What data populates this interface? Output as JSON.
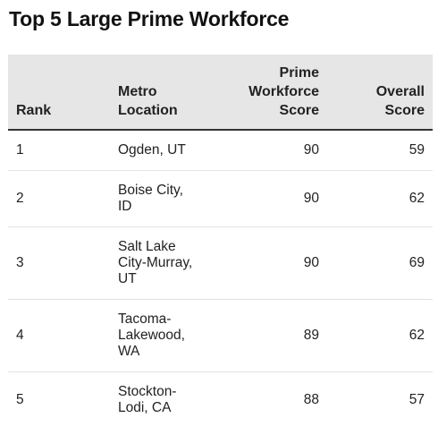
{
  "title": "Top 5 Large Prime Workforce",
  "columns": {
    "rank": "Rank",
    "metro_line1": "Metro",
    "metro_line2": "Location",
    "prime_line1": "Prime",
    "prime_line2": "Workforce",
    "prime_line3": "Score",
    "overall_line1": "Overall",
    "overall_line2": "Score"
  },
  "rows": [
    {
      "rank": "1",
      "location_lines": [
        "Ogden, UT"
      ],
      "prime_score": "90",
      "overall_score": "59"
    },
    {
      "rank": "2",
      "location_lines": [
        "Boise City,",
        "ID"
      ],
      "prime_score": "90",
      "overall_score": "62"
    },
    {
      "rank": "3",
      "location_lines": [
        "Salt Lake",
        "City-Murray,",
        "UT"
      ],
      "prime_score": "90",
      "overall_score": "69"
    },
    {
      "rank": "4",
      "location_lines": [
        "Tacoma-",
        "Lakewood,",
        "WA"
      ],
      "prime_score": "89",
      "overall_score": "62"
    },
    {
      "rank": "5",
      "location_lines": [
        "Stockton-",
        "Lodi, CA"
      ],
      "prime_score": "88",
      "overall_score": "57"
    }
  ],
  "chart_data": {
    "type": "table",
    "title": "Top 5 Large Prime Workforce",
    "headers": [
      "Rank",
      "Metro Location",
      "Prime Workforce Score",
      "Overall Score"
    ],
    "rows": [
      [
        "1",
        "Ogden, UT",
        90,
        59
      ],
      [
        "2",
        "Boise City, ID",
        90,
        62
      ],
      [
        "3",
        "Salt Lake City-Murray, UT",
        90,
        69
      ],
      [
        "4",
        "Tacoma-Lakewood, WA",
        89,
        62
      ],
      [
        "5",
        "Stockton-Lodi, CA",
        88,
        57
      ]
    ]
  }
}
